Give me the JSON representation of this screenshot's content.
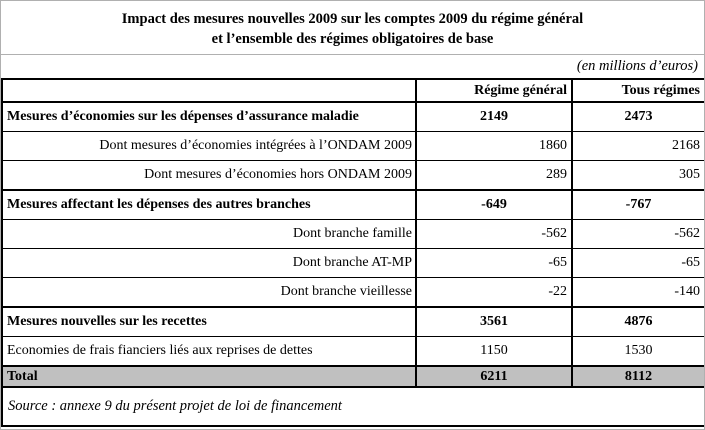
{
  "title": {
    "line1": "Impact des mesures nouvelles 2009 sur les comptes 2009 du régime général",
    "line2": "et l’ensemble des régimes obligatoires de base"
  },
  "unit_note": "(en millions d’euros)",
  "table": {
    "columns": {
      "regime_general": "Régime général",
      "tous_regimes": "Tous régimes"
    },
    "rows": [
      {
        "label": "Mesures d’économies sur les dépenses d’assurance maladie",
        "regime_general": "2149",
        "tous_regimes": "2473"
      },
      {
        "label": "Dont mesures d’économies intégrées à l’ONDAM 2009",
        "regime_general": "1860",
        "tous_regimes": "2168"
      },
      {
        "label": "Dont mesures d’économies hors ONDAM 2009",
        "regime_general": "289",
        "tous_regimes": "305"
      },
      {
        "label": "Mesures affectant les dépenses des autres branches",
        "regime_general": "-649",
        "tous_regimes": "-767"
      },
      {
        "label": "Dont branche famille",
        "regime_general": "-562",
        "tous_regimes": "-562"
      },
      {
        "label": "Dont branche AT-MP",
        "regime_general": "-65",
        "tous_regimes": "-65"
      },
      {
        "label": "Dont branche vieillesse",
        "regime_general": "-22",
        "tous_regimes": "-140"
      },
      {
        "label": "Mesures nouvelles sur les recettes",
        "regime_general": "3561",
        "tous_regimes": "4876"
      },
      {
        "label": "Economies de frais fianciers liés aux reprises de dettes",
        "regime_general": "1150",
        "tous_regimes": "1530"
      },
      {
        "label": "Total",
        "regime_general": "6211",
        "tous_regimes": "8112"
      }
    ]
  },
  "source_note": "Source : annexe 9 du présent projet de loi de financement",
  "colors": {
    "total_row_bg": "#c0c0c0",
    "table_border": "#000000",
    "outer_border": "#b0b0b0"
  }
}
